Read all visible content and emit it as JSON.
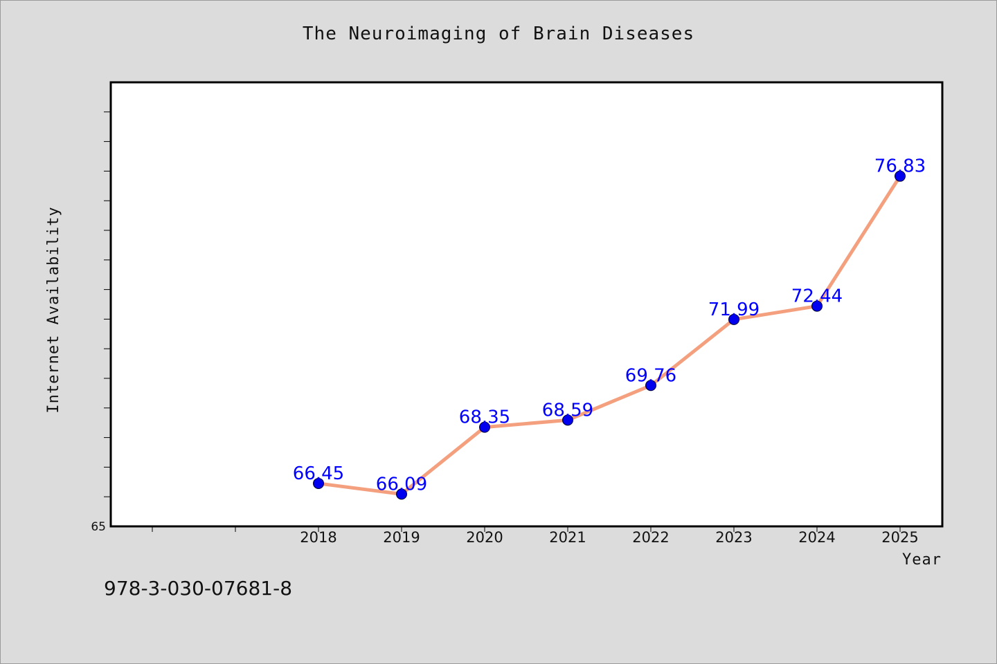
{
  "chart_data": {
    "type": "line",
    "title": "The Neuroimaging of Brain Diseases",
    "xlabel": "Year",
    "ylabel": "Internet Availability",
    "categories": [
      "2018",
      "2019",
      "2020",
      "2021",
      "2022",
      "2023",
      "2024",
      "2025"
    ],
    "series": [
      {
        "values": [
          66.45,
          66.09,
          68.35,
          68.59,
          69.76,
          71.99,
          72.44,
          76.83
        ],
        "labels": [
          "66.45",
          "66.09",
          "68.35",
          "68.59",
          "69.76",
          "71.99",
          "72.44",
          "76.83"
        ]
      }
    ],
    "ylim": [
      65,
      80
    ],
    "ytick_labels": [
      "65"
    ],
    "grid": false,
    "legend": "none",
    "colors": {
      "line": "#f4a07e",
      "marker": "#0000ee",
      "data_label": "#0000ff",
      "plot_background": "#ffffff",
      "page_background": "#dcdcdc"
    }
  },
  "footer": {
    "isbn": "978-3-030-07681-8"
  }
}
